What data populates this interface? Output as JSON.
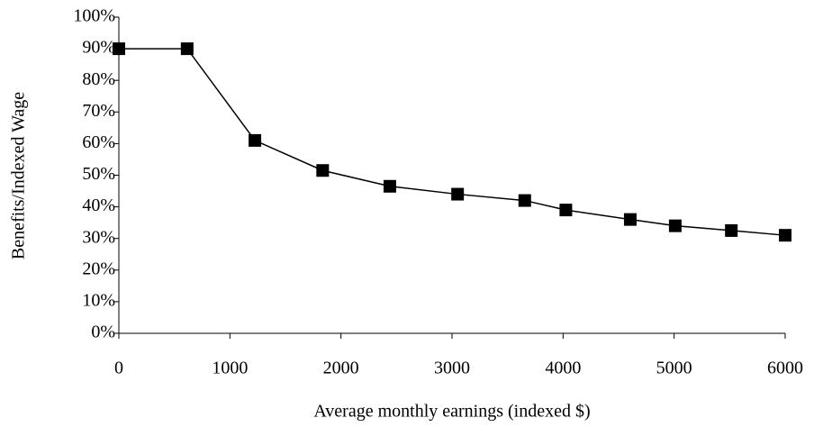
{
  "chart_data": {
    "type": "line",
    "xlabel": "Average monthly earnings (indexed $)",
    "ylabel": "Benefits/Indexed Wage",
    "x": [
      0,
      615,
      1225,
      1835,
      2440,
      3050,
      3655,
      4025,
      4605,
      5010,
      5515,
      6000
    ],
    "values": [
      90,
      90,
      61,
      51.5,
      46.5,
      44,
      42,
      39,
      36,
      34,
      32.5,
      31
    ],
    "color": "#000000",
    "marker": "square",
    "xlim": [
      0,
      6000
    ],
    "xticks": [
      0,
      1000,
      2000,
      3000,
      4000,
      5000,
      6000
    ],
    "ylim": [
      0,
      100
    ],
    "yticks": [
      {
        "value": 0,
        "label": "0%"
      },
      {
        "value": 10,
        "label": "10%"
      },
      {
        "value": 20,
        "label": "20%"
      },
      {
        "value": 30,
        "label": "30%"
      },
      {
        "value": 40,
        "label": "40%"
      },
      {
        "value": 50,
        "label": "50%"
      },
      {
        "value": 60,
        "label": "60%"
      },
      {
        "value": 70,
        "label": "70%"
      },
      {
        "value": 80,
        "label": "80%"
      },
      {
        "value": 90,
        "label": "90%"
      },
      {
        "value": 100,
        "label": "100%"
      }
    ],
    "grid": false
  }
}
